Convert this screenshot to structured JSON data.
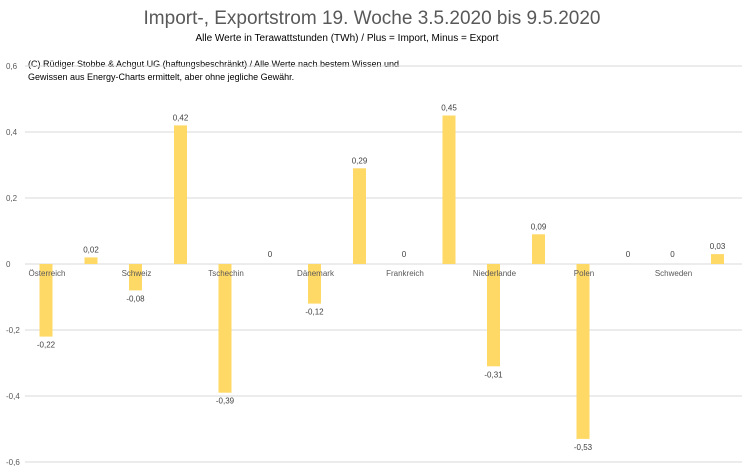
{
  "chart_data": {
    "type": "bar",
    "title": "Import-, Exportstrom 19. Woche 3.5.2020 bis 9.5.2020",
    "subtitle": "Alle Werte in Terawattstunden (TWh) / Plus = Import, Minus = Export",
    "note": [
      "(C) Rüdiger Stobbe & Achgut UG (haftungsbeschränkt) / Alle Werte nach bestem Wissen und",
      "Gewissen aus Energy-Charts ermittelt, aber ohne jegliche Gewähr."
    ],
    "categories": [
      "Österreich",
      "Schweiz",
      "Tschechin",
      "Dänemark",
      "Frankreich",
      "Niederlande",
      "Polen",
      "Schweden"
    ],
    "series": [
      {
        "name": "Export",
        "values": [
          -0.22,
          -0.08,
          -0.39,
          -0.12,
          0,
          -0.31,
          -0.53,
          0
        ],
        "labels": [
          "-0,22",
          "-0,08",
          "-0,39",
          "-0,12",
          "0",
          "-0,31",
          "-0,53",
          "0"
        ]
      },
      {
        "name": "Import",
        "values": [
          0.02,
          0.42,
          0,
          0.29,
          0.45,
          0.09,
          0,
          0.03
        ],
        "labels": [
          "0,02",
          "0,42",
          "0",
          "0,29",
          "0,45",
          "0,09",
          "0",
          "0,03"
        ]
      }
    ],
    "ylim": [
      -0.6,
      0.6
    ],
    "yticks": [
      0.6,
      0.4,
      0.2,
      0,
      -0.2,
      -0.4,
      -0.6
    ],
    "ytick_labels": [
      "0,6",
      "0,4",
      "0,2",
      "0",
      "-0,2",
      "-0,4",
      "-0,6"
    ],
    "grid": true,
    "bar_color": "#FFD966",
    "grid_color": "#D9D9D9",
    "xlabel": "",
    "ylabel": ""
  }
}
